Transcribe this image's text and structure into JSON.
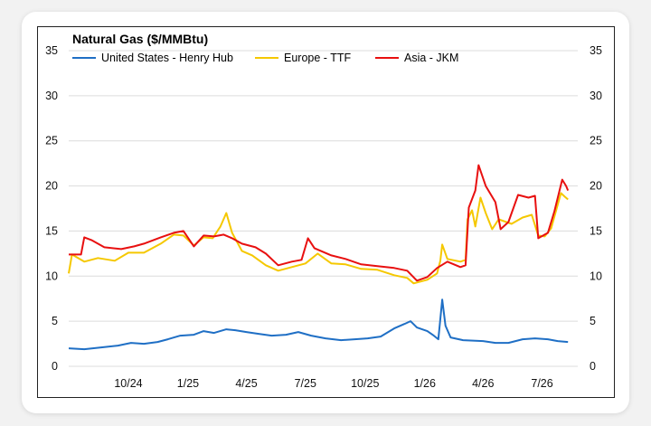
{
  "chart_data": {
    "type": "line",
    "title": "Natural Gas ($/MMBtu)",
    "xlabel": "",
    "ylabel": "",
    "ylim": [
      0,
      35
    ],
    "yticks": [
      0,
      5,
      10,
      15,
      20,
      25,
      30,
      35
    ],
    "secondary_yticks": [
      0,
      5,
      10,
      15,
      20,
      25,
      30,
      35
    ],
    "x_tick_labels": [
      "10/24",
      "1/25",
      "4/25",
      "7/25",
      "10/25",
      "1/26",
      "4/26",
      "7/26"
    ],
    "xlim": [
      "2024-07-01",
      "2026-08-25"
    ],
    "grid": "horizontal",
    "legend_position": "top-left",
    "series": [
      {
        "name": "United States - Henry Hub",
        "color": "#1f6fc5",
        "points": [
          [
            "2024-07-01",
            2.0
          ],
          [
            "2024-07-25",
            1.9
          ],
          [
            "2024-08-20",
            2.1
          ],
          [
            "2024-09-15",
            2.3
          ],
          [
            "2024-10-05",
            2.6
          ],
          [
            "2024-10-25",
            2.5
          ],
          [
            "2024-11-15",
            2.7
          ],
          [
            "2024-12-01",
            3.0
          ],
          [
            "2024-12-20",
            3.4
          ],
          [
            "2025-01-10",
            3.5
          ],
          [
            "2025-01-25",
            3.9
          ],
          [
            "2025-02-10",
            3.7
          ],
          [
            "2025-03-01",
            4.1
          ],
          [
            "2025-03-15",
            4.0
          ],
          [
            "2025-04-01",
            3.8
          ],
          [
            "2025-04-20",
            3.6
          ],
          [
            "2025-05-10",
            3.4
          ],
          [
            "2025-06-01",
            3.5
          ],
          [
            "2025-06-20",
            3.8
          ],
          [
            "2025-07-10",
            3.4
          ],
          [
            "2025-08-01",
            3.1
          ],
          [
            "2025-08-25",
            2.9
          ],
          [
            "2025-09-15",
            3.0
          ],
          [
            "2025-10-05",
            3.1
          ],
          [
            "2025-10-25",
            3.3
          ],
          [
            "2025-11-15",
            4.2
          ],
          [
            "2025-12-01",
            4.7
          ],
          [
            "2025-12-10",
            5.0
          ],
          [
            "2025-12-20",
            4.3
          ],
          [
            "2026-01-05",
            3.9
          ],
          [
            "2026-01-15",
            3.4
          ],
          [
            "2026-01-22",
            3.0
          ],
          [
            "2026-01-28",
            7.4
          ],
          [
            "2026-02-02",
            4.5
          ],
          [
            "2026-02-10",
            3.2
          ],
          [
            "2026-03-01",
            2.9
          ],
          [
            "2026-04-01",
            2.8
          ],
          [
            "2026-04-20",
            2.6
          ],
          [
            "2026-05-10",
            2.6
          ],
          [
            "2026-06-01",
            3.0
          ],
          [
            "2026-06-20",
            3.1
          ],
          [
            "2026-07-10",
            3.0
          ],
          [
            "2026-07-25",
            2.8
          ],
          [
            "2026-08-10",
            2.7
          ]
        ]
      },
      {
        "name": "Europe - TTF",
        "color": "#f5c800",
        "points": [
          [
            "2024-07-01",
            10.3
          ],
          [
            "2024-07-06",
            12.4
          ],
          [
            "2024-07-25",
            11.6
          ],
          [
            "2024-08-15",
            12.0
          ],
          [
            "2024-09-10",
            11.7
          ],
          [
            "2024-10-01",
            12.6
          ],
          [
            "2024-10-25",
            12.6
          ],
          [
            "2024-11-20",
            13.6
          ],
          [
            "2024-12-10",
            14.6
          ],
          [
            "2024-12-25",
            14.5
          ],
          [
            "2025-01-10",
            13.4
          ],
          [
            "2025-01-25",
            14.3
          ],
          [
            "2025-02-08",
            14.2
          ],
          [
            "2025-02-20",
            15.5
          ],
          [
            "2025-03-01",
            17.0
          ],
          [
            "2025-03-10",
            14.8
          ],
          [
            "2025-03-25",
            12.8
          ],
          [
            "2025-04-10",
            12.3
          ],
          [
            "2025-05-01",
            11.2
          ],
          [
            "2025-05-20",
            10.6
          ],
          [
            "2025-06-10",
            11.0
          ],
          [
            "2025-07-01",
            11.4
          ],
          [
            "2025-07-20",
            12.5
          ],
          [
            "2025-08-10",
            11.4
          ],
          [
            "2025-09-01",
            11.3
          ],
          [
            "2025-09-25",
            10.8
          ],
          [
            "2025-10-20",
            10.7
          ],
          [
            "2025-11-15",
            10.1
          ],
          [
            "2025-12-05",
            9.8
          ],
          [
            "2025-12-15",
            9.2
          ],
          [
            "2026-01-05",
            9.6
          ],
          [
            "2026-01-20",
            10.3
          ],
          [
            "2026-01-25",
            11.7
          ],
          [
            "2026-01-28",
            13.5
          ],
          [
            "2026-02-05",
            11.9
          ],
          [
            "2026-02-25",
            11.6
          ],
          [
            "2026-03-05",
            11.8
          ],
          [
            "2026-03-08",
            16.3
          ],
          [
            "2026-03-15",
            17.3
          ],
          [
            "2026-03-20",
            15.5
          ],
          [
            "2026-03-28",
            18.7
          ],
          [
            "2026-04-05",
            17.0
          ],
          [
            "2026-04-15",
            15.2
          ],
          [
            "2026-04-25",
            16.3
          ],
          [
            "2026-05-15",
            15.8
          ],
          [
            "2026-06-01",
            16.5
          ],
          [
            "2026-06-15",
            16.8
          ],
          [
            "2026-06-25",
            14.5
          ],
          [
            "2026-07-05",
            14.4
          ],
          [
            "2026-07-15",
            15.3
          ],
          [
            "2026-07-30",
            19.2
          ],
          [
            "2026-08-05",
            18.8
          ],
          [
            "2026-08-10",
            18.5
          ]
        ]
      },
      {
        "name": "Asia - JKM",
        "color": "#e81010",
        "points": [
          [
            "2024-07-01",
            12.4
          ],
          [
            "2024-07-20",
            12.4
          ],
          [
            "2024-07-25",
            14.3
          ],
          [
            "2024-08-05",
            14.0
          ],
          [
            "2024-08-25",
            13.2
          ],
          [
            "2024-09-20",
            13.0
          ],
          [
            "2024-10-10",
            13.3
          ],
          [
            "2024-10-25",
            13.6
          ],
          [
            "2024-11-20",
            14.3
          ],
          [
            "2024-12-10",
            14.8
          ],
          [
            "2024-12-25",
            15.0
          ],
          [
            "2025-01-10",
            13.3
          ],
          [
            "2025-01-25",
            14.5
          ],
          [
            "2025-02-10",
            14.4
          ],
          [
            "2025-02-25",
            14.6
          ],
          [
            "2025-03-10",
            14.2
          ],
          [
            "2025-03-25",
            13.6
          ],
          [
            "2025-04-15",
            13.2
          ],
          [
            "2025-05-01",
            12.5
          ],
          [
            "2025-05-20",
            11.2
          ],
          [
            "2025-06-10",
            11.6
          ],
          [
            "2025-06-25",
            11.8
          ],
          [
            "2025-07-05",
            14.2
          ],
          [
            "2025-07-15",
            13.1
          ],
          [
            "2025-08-10",
            12.3
          ],
          [
            "2025-09-01",
            11.9
          ],
          [
            "2025-09-25",
            11.3
          ],
          [
            "2025-10-20",
            11.1
          ],
          [
            "2025-11-15",
            10.9
          ],
          [
            "2025-12-05",
            10.6
          ],
          [
            "2025-12-20",
            9.5
          ],
          [
            "2026-01-05",
            9.9
          ],
          [
            "2026-01-20",
            10.9
          ],
          [
            "2026-02-05",
            11.6
          ],
          [
            "2026-02-25",
            11.0
          ],
          [
            "2026-03-05",
            11.2
          ],
          [
            "2026-03-10",
            17.6
          ],
          [
            "2026-03-20",
            19.5
          ],
          [
            "2026-03-25",
            22.3
          ],
          [
            "2026-04-05",
            20.0
          ],
          [
            "2026-04-20",
            18.2
          ],
          [
            "2026-04-28",
            15.2
          ],
          [
            "2026-05-10",
            16.0
          ],
          [
            "2026-05-25",
            19.0
          ],
          [
            "2026-06-10",
            18.7
          ],
          [
            "2026-06-20",
            18.9
          ],
          [
            "2026-06-25",
            14.2
          ],
          [
            "2026-07-10",
            14.8
          ],
          [
            "2026-07-20",
            17.2
          ],
          [
            "2026-08-01",
            20.7
          ],
          [
            "2026-08-07",
            20.0
          ],
          [
            "2026-08-10",
            19.5
          ]
        ]
      }
    ]
  }
}
